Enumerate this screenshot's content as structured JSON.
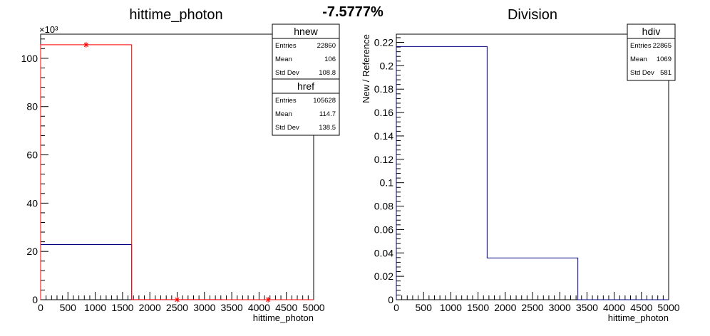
{
  "summary": {
    "ratio_text": "-7.5777%"
  },
  "chart_data": [
    {
      "type": "histogram",
      "title": "hittime_photon",
      "xlabel": "hittime_photon",
      "ylabel": "",
      "y_multiplier": "×10³",
      "xlim": [
        0,
        5000
      ],
      "ylim": [
        0,
        110
      ],
      "x_ticks": [
        "0",
        "500",
        "1000",
        "1500",
        "2000",
        "2500",
        "3000",
        "3500",
        "4000",
        "4500",
        "5000"
      ],
      "y_ticks": [
        {
          "value": 0,
          "label": "0"
        },
        {
          "value": 20,
          "label": "20"
        },
        {
          "value": 40,
          "label": "40"
        },
        {
          "value": 60,
          "label": "60"
        },
        {
          "value": 80,
          "label": "80"
        },
        {
          "value": 100,
          "label": "100"
        }
      ],
      "bin_edges": [
        0,
        1667,
        3333,
        5000
      ],
      "series": [
        {
          "name": "hnew",
          "color": "#000080",
          "values": [
            22.86,
            0,
            0
          ]
        },
        {
          "name": "href",
          "color": "#ff0000",
          "values": [
            105.6,
            0.02,
            0.01
          ],
          "markers": "star"
        }
      ],
      "stats": [
        {
          "name": "hnew",
          "rows": [
            {
              "label": "Entries",
              "value": "22860"
            },
            {
              "label": "Mean",
              "value": "106"
            },
            {
              "label": "Std Dev",
              "value": "108.8"
            }
          ]
        },
        {
          "name": "href",
          "rows": [
            {
              "label": "Entries",
              "value": "105628"
            },
            {
              "label": "Mean",
              "value": "114.7"
            },
            {
              "label": "Std Dev",
              "value": "138.5"
            }
          ]
        }
      ]
    },
    {
      "type": "histogram",
      "title": "Division",
      "xlabel": "hittime_photon",
      "ylabel": "New / Reference",
      "xlim": [
        0,
        5000
      ],
      "ylim": [
        0,
        0.227
      ],
      "x_ticks": [
        "0",
        "500",
        "1000",
        "1500",
        "2000",
        "2500",
        "3000",
        "3500",
        "4000",
        "4500",
        "5000"
      ],
      "y_ticks": [
        {
          "value": 0,
          "label": "0"
        },
        {
          "value": 0.02,
          "label": "0.02"
        },
        {
          "value": 0.04,
          "label": "0.04"
        },
        {
          "value": 0.06,
          "label": "0.06"
        },
        {
          "value": 0.08,
          "label": "0.08"
        },
        {
          "value": 0.1,
          "label": "0.1"
        },
        {
          "value": 0.12,
          "label": "0.12"
        },
        {
          "value": 0.14,
          "label": "0.14"
        },
        {
          "value": 0.16,
          "label": "0.16"
        },
        {
          "value": 0.18,
          "label": "0.18"
        },
        {
          "value": 0.2,
          "label": "0.2"
        },
        {
          "value": 0.22,
          "label": "0.22"
        }
      ],
      "bin_edges": [
        0,
        1667,
        3333,
        5000
      ],
      "series": [
        {
          "name": "hdiv",
          "color": "#000080",
          "values": [
            0.2164,
            0.0357,
            0
          ]
        }
      ],
      "stats": [
        {
          "name": "hdiv",
          "rows": [
            {
              "label": "Entries",
              "value": "22865"
            },
            {
              "label": "Mean",
              "value": "1069"
            },
            {
              "label": "Std Dev",
              "value": "581"
            }
          ]
        }
      ]
    }
  ]
}
